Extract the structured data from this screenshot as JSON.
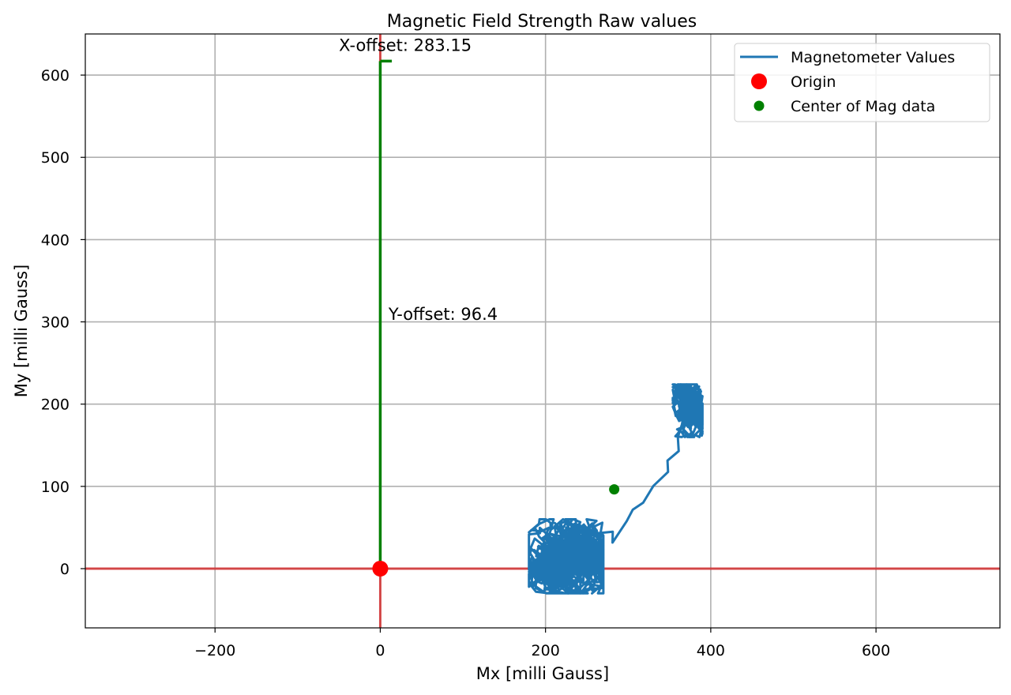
{
  "chart_data": {
    "type": "line",
    "title": "Magnetic Field Strength Raw values",
    "xlabel": "Mx [milli Gauss]",
    "ylabel": "My [milli Gauss]",
    "xlim": [
      -357,
      750
    ],
    "ylim": [
      -72,
      650
    ],
    "xticks": [
      -200,
      0,
      200,
      400,
      600
    ],
    "xtick_labels": [
      "−200",
      "0",
      "200",
      "400",
      "600"
    ],
    "yticks": [
      0,
      100,
      200,
      300,
      400,
      500,
      600
    ],
    "ytick_labels": [
      "0",
      "100",
      "200",
      "300",
      "400",
      "500",
      "600"
    ],
    "grid": true,
    "legend_position": "top-right",
    "colors": {
      "magnetometer": "#1f77b4",
      "origin": "#ff0000",
      "center": "#008000",
      "axes_lines": "#d62728",
      "offset_lines": "#008000",
      "grid": "#b0b0b0"
    },
    "series": [
      {
        "name": "Magnetometer Values",
        "kind": "line",
        "clusters": [
          {
            "cx": 225,
            "cy": 15,
            "rx": 45,
            "ry": 45,
            "n": 900
          },
          {
            "cx": 372,
            "cy": 192,
            "rx": 18,
            "ry": 32,
            "n": 500
          }
        ],
        "path": [
          [
            262,
            45
          ],
          [
            278,
            42
          ],
          [
            285,
            35
          ],
          [
            298,
            55
          ],
          [
            305,
            72
          ],
          [
            318,
            82
          ],
          [
            330,
            97
          ],
          [
            345,
            115
          ],
          [
            350,
            130
          ],
          [
            360,
            140
          ],
          [
            362,
            160
          ],
          [
            365,
            175
          ]
        ]
      },
      {
        "name": "Origin",
        "kind": "marker",
        "x": 0,
        "y": 0
      },
      {
        "name": "Center of Mag data",
        "kind": "marker",
        "x": 283.15,
        "y": 96.4
      }
    ],
    "annotations": [
      {
        "text": "X-offset: 283.15",
        "x": -50,
        "y": 640
      },
      {
        "text": "Y-offset: 96.4",
        "x": 10,
        "y": 310
      }
    ],
    "reference_lines": {
      "horizontal_red_y": 0,
      "vertical_red_x": 0,
      "vertical_green": {
        "x": 0,
        "y0": 0,
        "y1": 617
      },
      "tick_green": {
        "x0": 0,
        "x1": 14,
        "y": 617
      }
    }
  }
}
